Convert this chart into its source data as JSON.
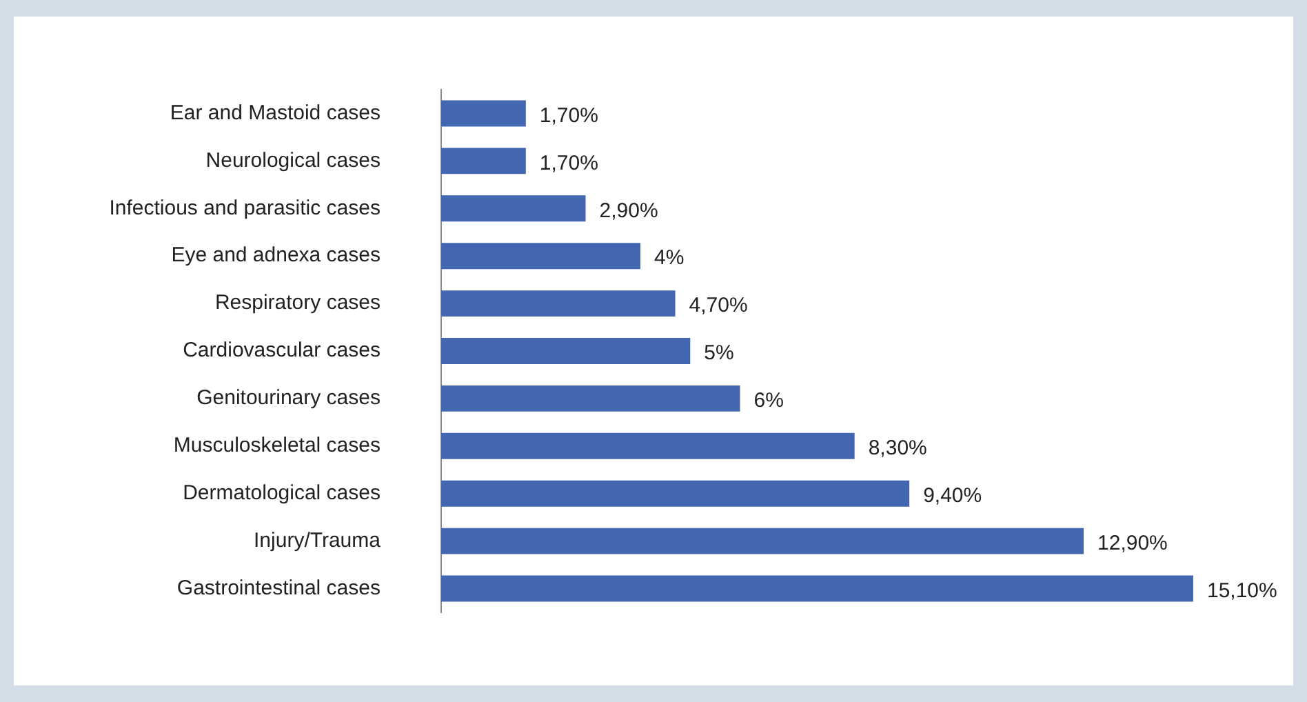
{
  "chart_data": {
    "type": "bar",
    "orientation": "horizontal",
    "categories": [
      "Ear and Mastoid cases",
      "Neurological cases",
      "Infectious and parasitic cases",
      "Eye and adnexa cases",
      "Respiratory cases",
      "Cardiovascular cases",
      "Genitourinary cases",
      "Musculoskeletal cases",
      "Dermatological cases",
      "Injury/Trauma",
      "Gastrointestinal cases"
    ],
    "values": [
      1.7,
      1.7,
      2.9,
      4,
      4.7,
      5,
      6,
      8.3,
      9.4,
      12.9,
      15.1
    ],
    "value_labels": [
      "1,70%",
      "1,70%",
      "2,90%",
      "4%",
      "4,70%",
      "5%",
      "6%",
      "8,30%",
      "9,40%",
      "12,90%",
      "15,10%"
    ],
    "color": "#4366b0",
    "tick_labels": "y"
  }
}
